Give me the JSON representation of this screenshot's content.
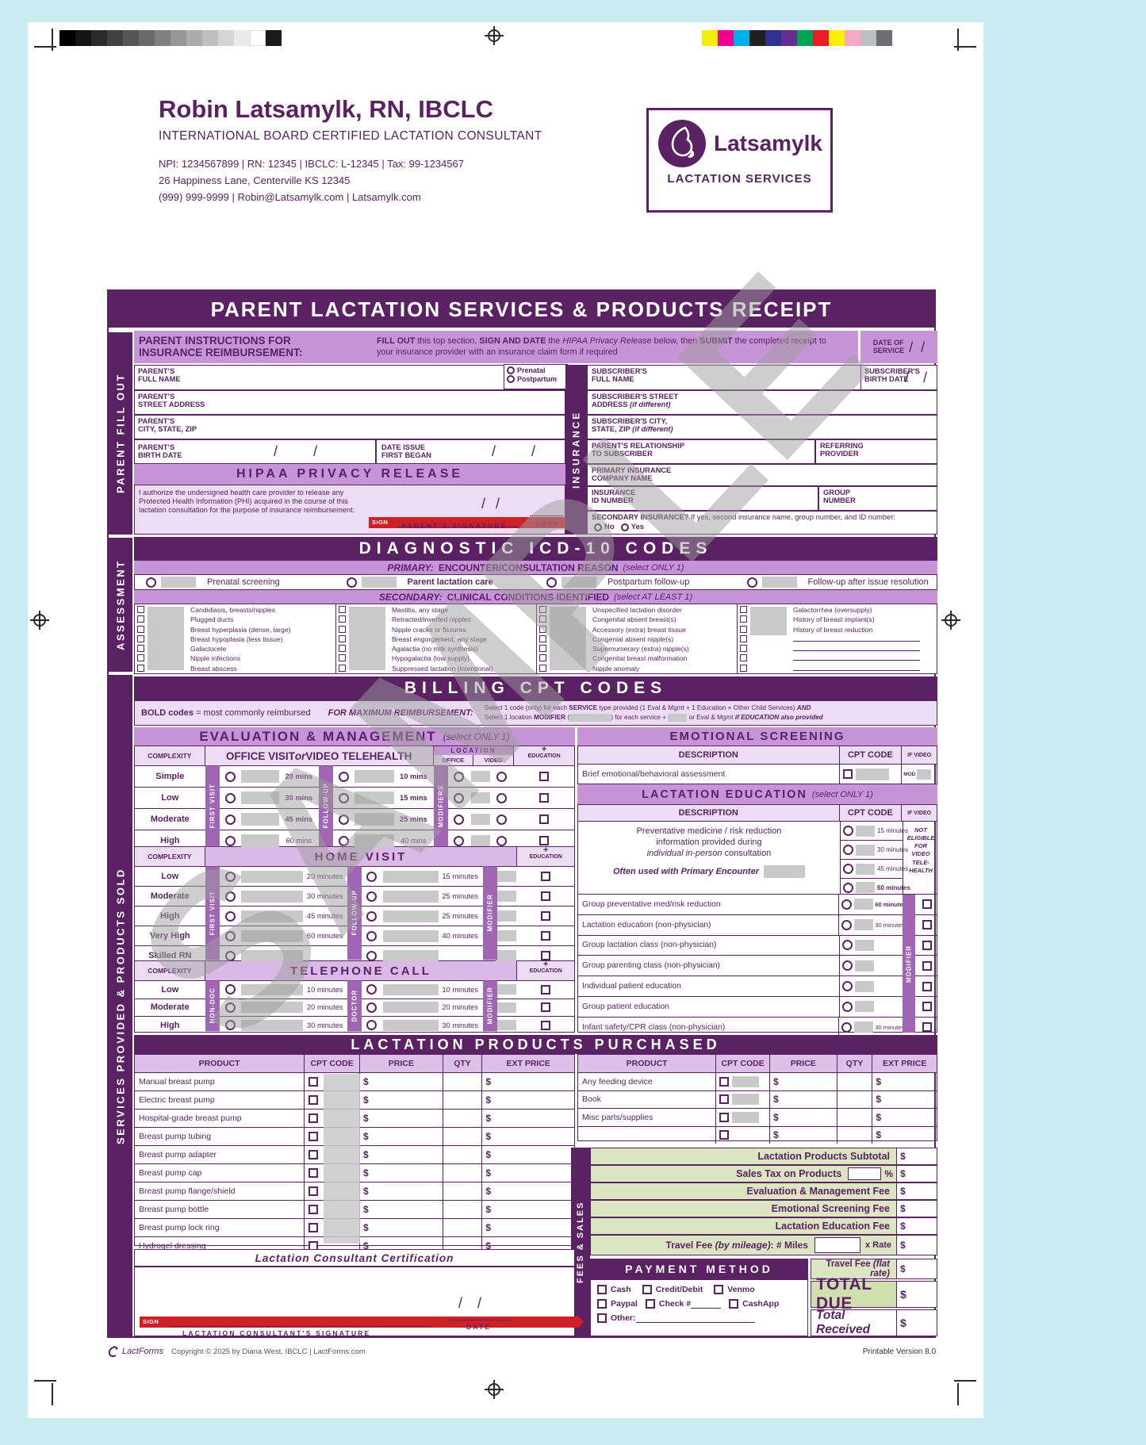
{
  "page": {
    "watermark": "SAMPLE"
  },
  "header": {
    "name": "Robin Latsamylk, RN, IBCLC",
    "subtitle": "INTERNATIONAL BOARD CERTIFIED LACTATION CONSULTANT",
    "ids": "NPI: 1234567899 | RN: 12345 | IBCLC: L-12345 | Tax: 99-1234567",
    "address": "26 Happiness Lane, Centerville KS 12345",
    "contact": "(999) 999-9999 | Robin@Latsamylk.com | Latsamylk.com",
    "logo": {
      "brand": "Latsamylk",
      "tagline": "LACTATION SERVICES"
    }
  },
  "form": {
    "title": "PARENT LACTATION SERVICES & PRODUCTS RECEIPT",
    "sidebar": {
      "top": "PARENT FILL OUT",
      "middle": "ASSESSMENT",
      "bottom": "SERVICES PROVIDED & PRODUCTS SOLD"
    }
  },
  "instr": {
    "heading": "PARENT INSTRUCTIONS FOR\nINSURANCE REIMBURSEMENT:",
    "body": [
      {
        "t": "FILL OUT",
        "b": 1
      },
      {
        "t": " this top section, "
      },
      {
        "t": "SIGN AND DATE",
        "b": 1
      },
      {
        "t": " the "
      },
      {
        "t": "HIPAA Privacy Release",
        "i": 1
      },
      {
        "t": " below, then "
      },
      {
        "t": "SUBMIT",
        "b": 1
      },
      {
        "t": " the completed receipt to your insurance provider with an insurance claim form if required"
      }
    ],
    "date_of_service": "DATE OF\nSERVICE"
  },
  "parent": {
    "full_name": "PARENT’S\nFULL NAME",
    "visit_types": [
      "Prenatal",
      "Postpartum"
    ],
    "street": "PARENT’S\nSTREET ADDRESS",
    "city": "PARENT’S\nCITY, STATE, ZIP",
    "birth": "PARENT’S\nBIRTH DATE",
    "date_issue": "DATE ISSUE\nFIRST BEGAN"
  },
  "hipaa": {
    "title": "HIPAA PRIVACY RELEASE",
    "text": "I authorize the undersigned health care provider to release any Protected Health Information (PHI) acquired in the course of this lactation consultation for the purpose of insurance reimbursement.",
    "sign": "SIGN",
    "signature": "PARENT'S SIGNATURE",
    "date": "DATE"
  },
  "ins": {
    "strip": "INSURANCE",
    "sub_name": "SUBSCRIBER'S\nFULL NAME",
    "sub_birth": "SUBSCRIBER'S\nBIRTH DATE",
    "sub_street": [
      {
        "t": "SUBSCRIBER'S STREET\nADDRESS "
      },
      {
        "t": "(if different)",
        "i": 1
      }
    ],
    "sub_city": [
      {
        "t": "SUBSCRIBER'S CITY,\nSTATE, ZIP "
      },
      {
        "t": "(if different)",
        "i": 1
      }
    ],
    "relationship": "PARENT'S RELATIONSHIP\nTO SUBSCRIBER",
    "referring": "REFERRING\nPROVIDER",
    "company": "PRIMARY INSURANCE\nCOMPANY NAME",
    "id": "INSURANCE\nID NUMBER",
    "group": "GROUP\nNUMBER",
    "secondary": [
      {
        "t": "SECONDARY INSURANCE?",
        "b": 1
      },
      {
        "t": "  If yes, second insurance name, group number, and ID number:"
      }
    ],
    "secondary_options": [
      "No",
      "Yes"
    ]
  },
  "icd": {
    "title": "DIAGNOSTIC ICD-10 CODES",
    "primary_label": "PRIMARY:",
    "primary_heading": "ENCOUNTER/CONSULTATION REASON",
    "primary_note": "(select ONLY 1)",
    "primary_options": [
      {
        "label": "Prenatal screening"
      },
      {
        "label": "Parent lactation care",
        "bold": true
      },
      {
        "label": "Postpartum follow-up"
      },
      {
        "label": "Follow-up after issue resolution"
      }
    ],
    "secondary_label": "SECONDARY:",
    "secondary_heading": "CLINICAL CONDITIONS IDENTIFIED",
    "secondary_note": "(select AT LEAST 1)",
    "col1": [
      "Candidiasis, breasts/nipples",
      "Plugged ducts",
      "Breast hyperplasia (dense, large)",
      "Breast hypoplasia (less tissue)",
      "Galactocele",
      "Nipple infections",
      "Breast abscess"
    ],
    "col2": [
      "Mastitis, any stage",
      "Retracted/inverted nipples",
      "Nipple cracks or fissures",
      "Breast engorgement, any stage",
      "Agalactia (no milk synthesis)",
      "Hypogalactia (low supply)",
      "Suppressed lactation (intentional)"
    ],
    "col3": [
      "Unspecified lactation disorder",
      "Congenital absent breast(s)",
      "Accessory (extra) breast tissue",
      "Congenial absent nipple(s)",
      "Supernumerary (extra) nipple(s)",
      "Congenital breast malformation",
      "Nipple anomaly"
    ],
    "col4": [
      "Galactorrhea (oversupply)",
      "History of breast implant(s)",
      "History of breast reduction"
    ]
  },
  "billing": {
    "title": "BILLING CPT CODES",
    "note_bold": [
      {
        "t": "BOLD codes",
        "b": 1
      },
      {
        "t": " = most commonly reimbursed"
      }
    ],
    "note_max": "FOR MAXIMUM REIMBURSEMENT:",
    "note_line1": [
      {
        "t": "Select 1 code (only) for each "
      },
      {
        "t": "SERVICE",
        "b": 1
      },
      {
        "t": " type provided (1 Eval & Mgmt + 1 Education + Other Child Services) "
      },
      {
        "t": "AND",
        "b": 1,
        "i": 1
      }
    ],
    "note_line2": [
      {
        "t": "Select 1 location "
      },
      {
        "t": "MODIFIER",
        "b": 1
      },
      {
        "t": " ("
      },
      {
        "t": "",
        "g": 1,
        "w": 52
      },
      {
        "t": ") for each service + "
      },
      {
        "t": "",
        "g": 1,
        "w": 24
      },
      {
        "t": " or Eval & Mgmt "
      },
      {
        "t": "if EDUCATION also provided",
        "b": 1,
        "i": 1
      }
    ]
  },
  "em": {
    "title": "EVALUATION & MANAGEMENT",
    "note": "(select ONLY 1)",
    "complexity": "COMPLEXITY",
    "office_header": [
      {
        "t": "OFFICE VISIT ",
        "b": 1
      },
      {
        "t": "or",
        "i": 1
      },
      {
        "t": " VIDEO TELEHEALTH",
        "b": 1
      }
    ],
    "location": "LOCATION",
    "office": "OFFICE",
    "video": "VIDEO",
    "plus": "+",
    "education": "EDUCATION",
    "first_visit": "FIRST VISIT",
    "follow_up": "FOLLOW-UP",
    "modifiers": "MODIFIERS",
    "modifier": "MODIFIER",
    "office_rows": [
      {
        "complexity": "Simple",
        "first": "20 mins",
        "follow": "10 mins"
      },
      {
        "complexity": "Low",
        "first": "30 mins",
        "follow": "15 mins"
      },
      {
        "complexity": "Moderate",
        "first": "45 mins",
        "follow": "25 mins"
      },
      {
        "complexity": "High",
        "first": "60 mins",
        "follow": "40 mins"
      }
    ],
    "home_title": "HOME VISIT",
    "home_rows": [
      {
        "complexity": "Low",
        "first": "20 minutes",
        "follow": "15 minutes"
      },
      {
        "complexity": "Moderate",
        "first": "30 minutes",
        "follow": "25 minutes"
      },
      {
        "complexity": "High",
        "first": "45 minutes",
        "follow": "25 minutes"
      },
      {
        "complexity": "Very High",
        "first": "60 minutes",
        "follow": "40 minutes"
      },
      {
        "complexity": "Skilled RN",
        "first": "",
        "follow": ""
      }
    ],
    "phone_title": "TELEPHONE CALL",
    "non_doc": "NON-DOC",
    "doctor": "DOCTOR",
    "phone_rows": [
      {
        "complexity": "Low",
        "first": "10 minutes",
        "follow": "10 minutes"
      },
      {
        "complexity": "Moderate",
        "first": "20 minutes",
        "follow": "20 minutes"
      },
      {
        "complexity": "High",
        "first": "30 minutes",
        "follow": "30 minutes"
      }
    ]
  },
  "emo": {
    "title": "EMOTIONAL SCREENING",
    "description": "DESCRIPTION",
    "cpt": "CPT CODE",
    "if_video": "IF VIDEO",
    "row": "Brief emotional/behavioral assessment",
    "mod": "MOD"
  },
  "edu": {
    "title": "LACTATION EDUCATION",
    "note": "(select ONLY 1)",
    "preventative": [
      {
        "t": "Preventative medicine / risk reduction\ninformation provided during\n"
      },
      {
        "t": "individual in-person",
        "i": 1
      },
      {
        "t": " consultation"
      }
    ],
    "often": "Often used with Primary Encounter",
    "minute_options": [
      {
        "label": "15 minutes"
      },
      {
        "label": "30 minutes"
      },
      {
        "label": "45 minutes"
      },
      {
        "label": "60 minutes",
        "bold": true
      }
    ],
    "not_eligible": "NOT\nELIGIBLE\nFOR\nVIDEO\nTELE-\nHEALTH",
    "rows": [
      {
        "label": "Group preventative med/risk reduction",
        "minutes": "60 minutes",
        "bold": true
      },
      {
        "label": "Lactation education (non-physician)",
        "minutes": "30 minutes"
      },
      {
        "label": "Group lactation class (non-physician)",
        "minutes": ""
      },
      {
        "label": "Group parenting class (non-physician)",
        "minutes": ""
      },
      {
        "label": "Individual patient education",
        "minutes": ""
      },
      {
        "label": "Group patient education",
        "minutes": ""
      },
      {
        "label": "Infant safety/CPR class (non-physician)",
        "minutes": "30 minutes"
      }
    ]
  },
  "products": {
    "title": "LACTATION PRODUCTS PURCHASED",
    "headers": {
      "product": "PRODUCT",
      "cpt": "CPT CODE",
      "price": "PRICE",
      "qty": "QTY",
      "ext": "EXT PRICE"
    },
    "left": [
      "Manual breast pump",
      "Electric breast pump",
      "Hospital-grade breast pump",
      "Breast pump tubing",
      "Breast pump adapter",
      "Breast pump cap",
      "Breast pump flange/shield",
      "Breast pump bottle",
      "Breast pump lock ring",
      "Hydrogel dressing"
    ],
    "right": [
      "Any feeding device",
      "Book",
      "Misc parts/supplies"
    ]
  },
  "fees": {
    "strip": "FEES & SALES",
    "subtotal": "Lactation Products Subtotal",
    "sales_tax": "Sales Tax on Products",
    "pct": "%",
    "em_fee": "Evaluation & Management Fee",
    "emo_fee": "Emotional Screening Fee",
    "edu_fee": "Lactation Education Fee",
    "travel_mileage": [
      {
        "t": "Travel Fee ",
        "b": 1
      },
      {
        "t": "(by mileage)",
        "b": 1,
        "i": 1
      },
      {
        "t": ":  # Miles",
        "b": 1
      }
    ],
    "x_rate": "x Rate",
    "travel_flat": [
      {
        "t": "Travel Fee ",
        "b": 1
      },
      {
        "t": "(flat rate)",
        "b": 1,
        "i": 1
      }
    ],
    "total_due": "TOTAL DUE",
    "total_received": "Total Received",
    "dollar": "$"
  },
  "payment": {
    "title": "PAYMENT METHOD",
    "options": [
      "Cash",
      "Credit/Debit",
      "Venmo",
      "Paypal",
      "Check #",
      "CashApp",
      "Other:"
    ]
  },
  "cert": {
    "title": "Lactation Consultant Certification",
    "sign": "SIGN",
    "signature": "LACTATION CONSULTANT'S SIGNATURE",
    "date": "DATE"
  },
  "footer": {
    "brand": "LactForms",
    "copyright": "Copyright © 2025 by Diana West, IBCLC | LactForms.com",
    "version": "Printable Version 8.0"
  },
  "misc": {
    "slash": "/"
  }
}
